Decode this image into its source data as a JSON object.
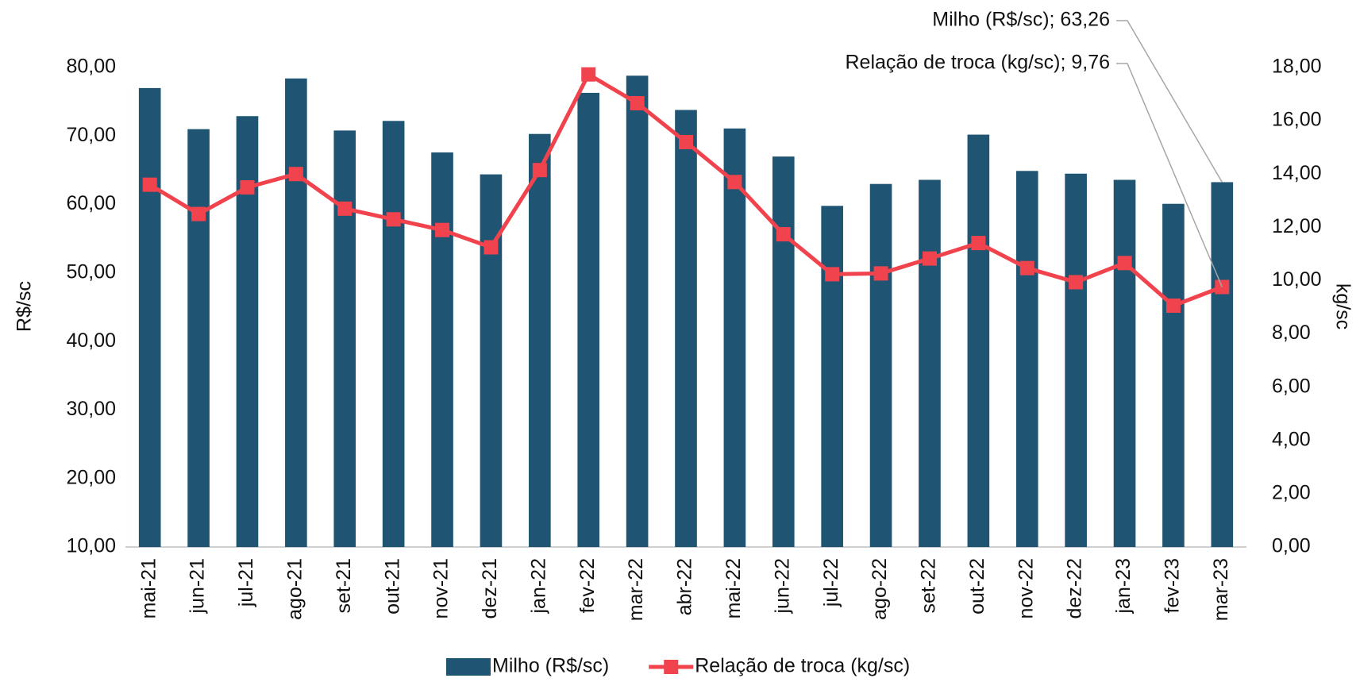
{
  "chart_data": {
    "type": "bar-line",
    "categories": [
      "mai-21",
      "jun-21",
      "jul-21",
      "ago-21",
      "set-21",
      "out-21",
      "nov-21",
      "dez-21",
      "jan-22",
      "fev-22",
      "mar-22",
      "abr-22",
      "mai-22",
      "jun-22",
      "jul-22",
      "ago-22",
      "set-22",
      "out-22",
      "nov-22",
      "dez-22",
      "jan-23",
      "fev-23",
      "mar-23"
    ],
    "series": [
      {
        "name": "Milho (R$/sc)",
        "type": "bar",
        "color": "#1f5572",
        "axis": "y",
        "values": [
          77.0,
          71.0,
          72.9,
          78.4,
          70.8,
          72.2,
          67.6,
          64.4,
          70.3,
          76.3,
          78.8,
          73.8,
          71.1,
          67.0,
          59.8,
          63.0,
          63.6,
          70.2,
          64.9,
          64.5,
          63.6,
          60.1,
          63.26
        ]
      },
      {
        "name": "Relação de troca (kg/sc)",
        "type": "line",
        "color": "#f0434d",
        "axis": "y2",
        "values": [
          13.6,
          12.5,
          13.5,
          14.0,
          12.7,
          12.3,
          11.9,
          11.25,
          14.15,
          17.74,
          16.66,
          15.2,
          13.7,
          11.74,
          10.24,
          10.27,
          10.83,
          11.41,
          10.47,
          9.94,
          10.66,
          9.06,
          9.76
        ]
      }
    ],
    "annotations": [
      "Milho (R$/sc); 63,26",
      "Relação de troca (kg/sc); 9,76"
    ],
    "ylabel": "R$/sc",
    "y2label": "kg/sc",
    "ylim": [
      10,
      80
    ],
    "yticks": [
      {
        "value": 10,
        "label": "10,00"
      },
      {
        "value": 20,
        "label": "20,00"
      },
      {
        "value": 30,
        "label": "30,00"
      },
      {
        "value": 40,
        "label": "40,00"
      },
      {
        "value": 50,
        "label": "50,00"
      },
      {
        "value": 60,
        "label": "60,00"
      },
      {
        "value": 70,
        "label": "70,00"
      },
      {
        "value": 80,
        "label": "80,00"
      }
    ],
    "y2lim": [
      0,
      18
    ],
    "y2ticks": [
      {
        "value": 0,
        "label": "0,00"
      },
      {
        "value": 2,
        "label": "2,00"
      },
      {
        "value": 4,
        "label": "4,00"
      },
      {
        "value": 6,
        "label": "6,00"
      },
      {
        "value": 8,
        "label": "8,00"
      },
      {
        "value": 10,
        "label": "10,00"
      },
      {
        "value": 12,
        "label": "12,00"
      },
      {
        "value": 14,
        "label": "14,00"
      },
      {
        "value": 16,
        "label": "16,00"
      },
      {
        "value": 18,
        "label": "18,00"
      }
    ],
    "legend": "bottom"
  }
}
